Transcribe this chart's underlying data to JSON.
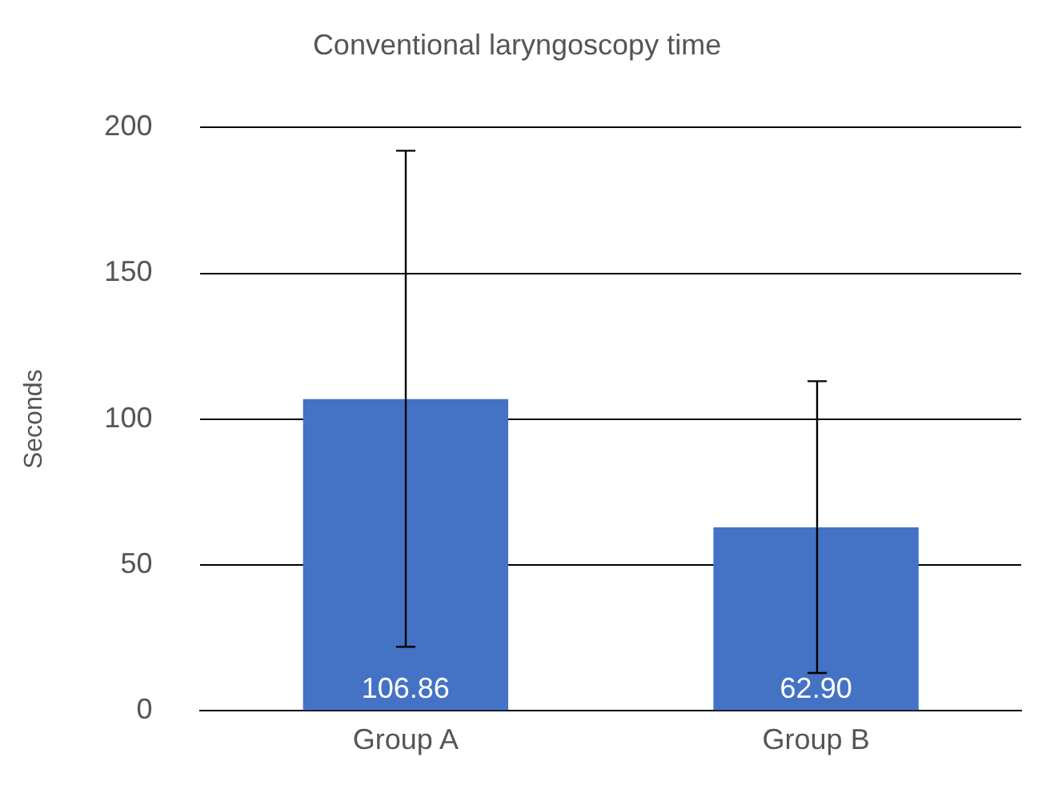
{
  "chart_data": {
    "type": "bar",
    "title": "Conventional laryngoscopy time",
    "ylabel": "Seconds",
    "categories": [
      "Group A",
      "Group B"
    ],
    "values": [
      106.86,
      62.9
    ],
    "color": "#4472c4",
    "errors": [
      [
        22,
        192
      ],
      [
        13,
        113
      ]
    ],
    "value_labels": [
      "106.86",
      "62.90"
    ],
    "ylim": [
      0,
      200
    ],
    "yticks": [
      0,
      50,
      100,
      150,
      200
    ],
    "grid": "y",
    "legend": false
  }
}
